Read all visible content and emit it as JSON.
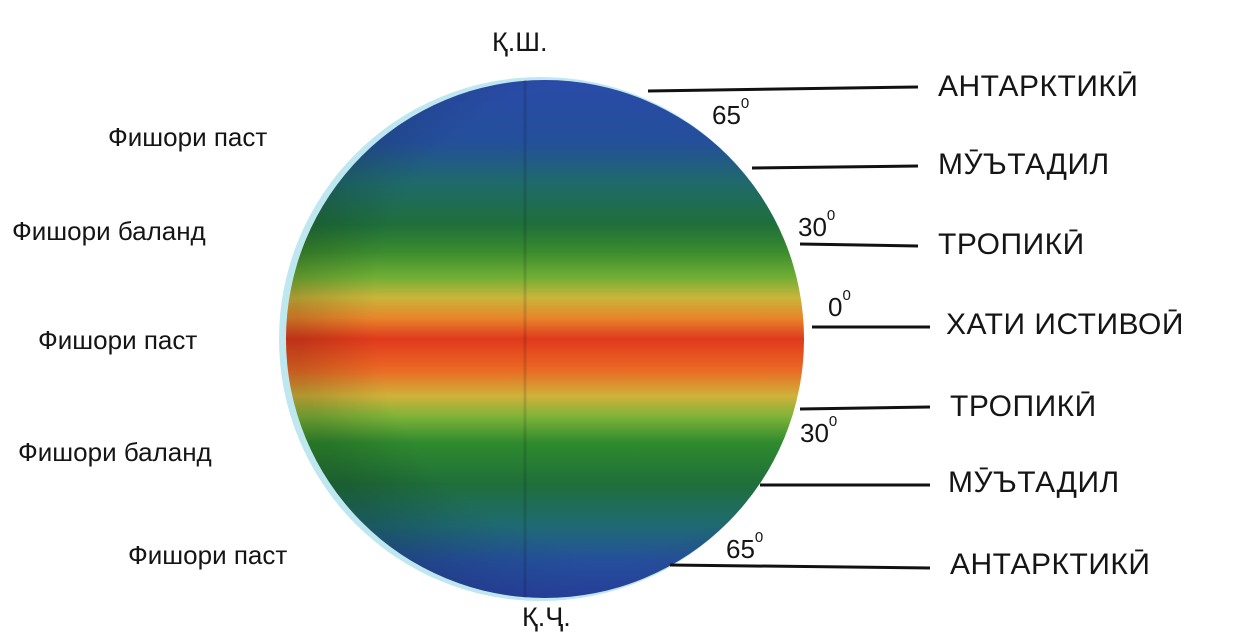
{
  "poles": {
    "north": "Қ.Ш.",
    "south": "Қ.Ҷ."
  },
  "left_labels": [
    "Фишори паст",
    "Фишори баланд",
    "Фишори паст",
    "Фишори баланд",
    "Фишори паст"
  ],
  "zones": [
    "АНТАРКТИКӢ",
    "МӮЪТАДИЛ",
    "ТРОПИКӢ",
    "ХАТИ ИСТИВОӢ",
    "ТРОПИКӢ",
    "МӮЪТАДИЛ",
    "АНТАРКТИКӢ"
  ],
  "degrees": [
    {
      "value": "65",
      "unit": "0"
    },
    {
      "value": "30",
      "unit": "0"
    },
    {
      "value": "0",
      "unit": "0"
    },
    {
      "value": "30",
      "unit": "0"
    },
    {
      "value": "65",
      "unit": "0"
    }
  ],
  "colors": {
    "polar": "#2747a6",
    "temperate": "#1f6f3a",
    "subtropical": "#3c9a2d",
    "tropical": "#e89a2a",
    "equator": "#e0391c",
    "line": "#111111"
  }
}
